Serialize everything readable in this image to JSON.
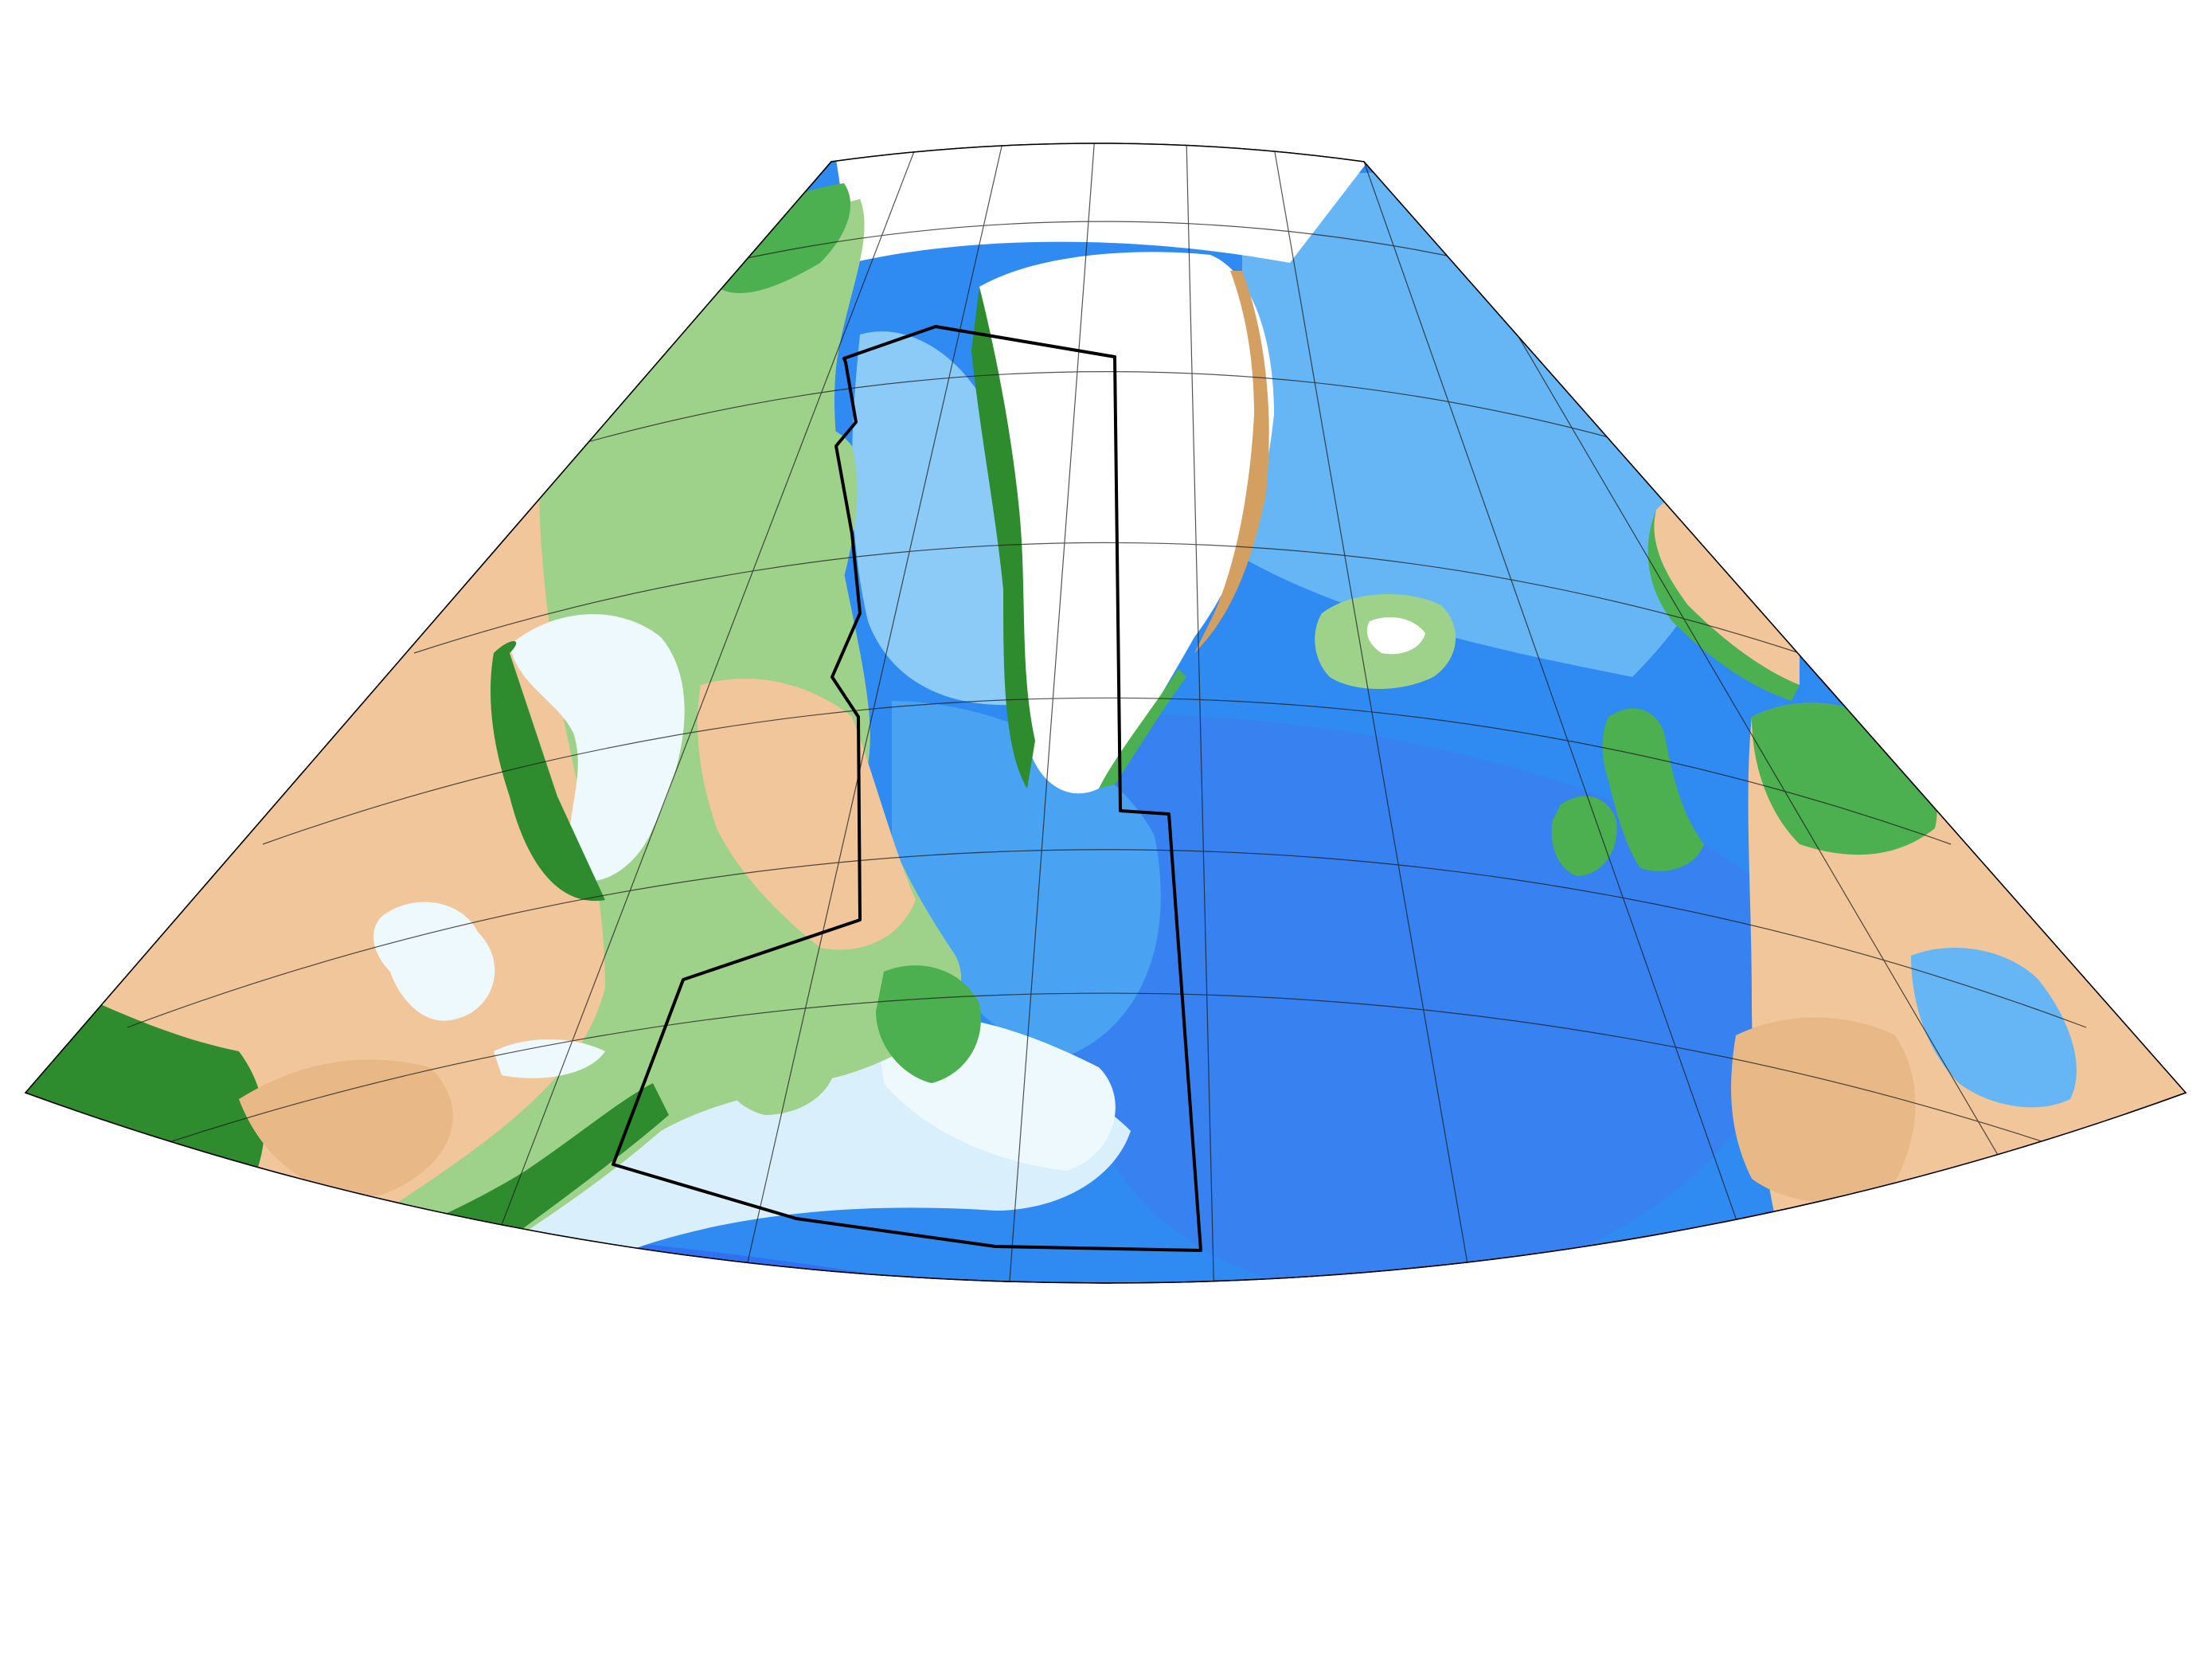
{
  "map": {
    "projection": "conic",
    "region": "North Atlantic",
    "colors": {
      "ocean_deep": "#2f6cf0",
      "ocean_mid": "#2f8af2",
      "ocean_light": "#66b6f5",
      "shelf": "#c4e6fb",
      "shelf_pale": "#e8f6fd",
      "ice": "#ffffff",
      "lowland": "#4caf50",
      "lowland_dark": "#2e8b2e",
      "upland": "#9ed28a",
      "highland": "#f2c69b",
      "mountain": "#d4a062",
      "outline": "#000000",
      "graticule": "#1a1a1a"
    },
    "graticule": {
      "meridian_step_deg": 10,
      "parallel_step_deg": 10
    },
    "boundary": {
      "style": "thick black outline",
      "color": "#000000"
    }
  }
}
